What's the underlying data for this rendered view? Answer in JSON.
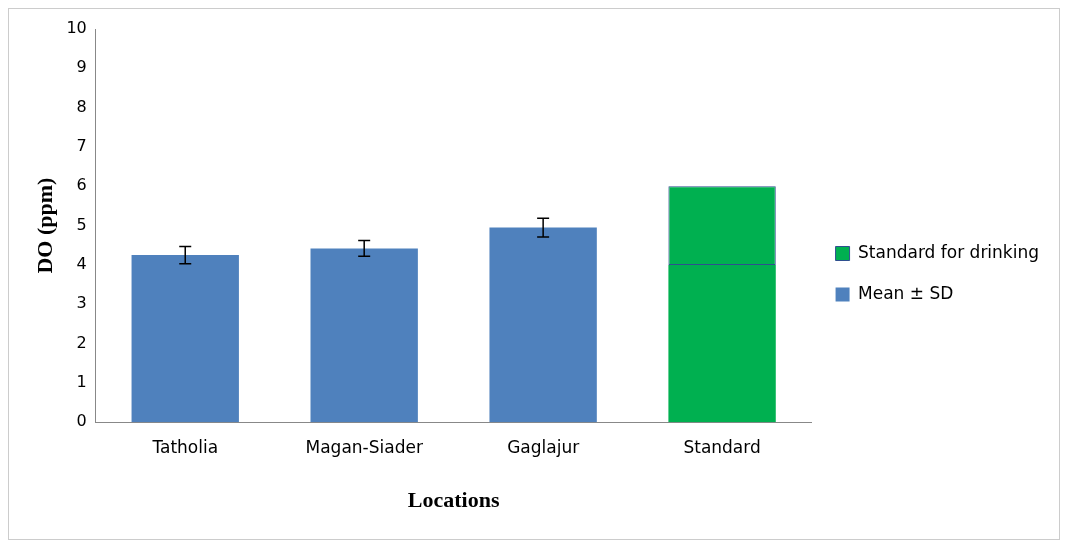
{
  "chart_data": {
    "type": "bar",
    "xlabel": "Locations",
    "ylabel": "DO (ppm)",
    "categories": [
      "Tatholia",
      "Magan-Siader",
      "Gaglajur",
      "Standard"
    ],
    "stacked": true,
    "ylim": [
      0,
      10
    ],
    "yticks": [
      0,
      1,
      2,
      3,
      4,
      5,
      6,
      7,
      8,
      9,
      10
    ],
    "grid": false,
    "legend": "right",
    "series": [
      {
        "name": "Mean ± SD",
        "color": "#4f81bd",
        "values": [
          4.25,
          4.42,
          4.95,
          null
        ],
        "errors": [
          0.22,
          0.2,
          0.24,
          null
        ]
      },
      {
        "color": "#00b050",
        "values": [
          null,
          null,
          null,
          4
        ]
      },
      {
        "name": "Standard for drinking",
        "color": "#00b050",
        "values": [
          null,
          null,
          null,
          2
        ]
      }
    ]
  }
}
